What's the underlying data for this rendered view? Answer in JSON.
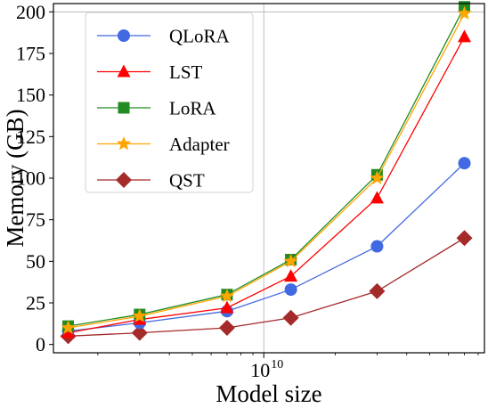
{
  "chart_data": {
    "type": "line",
    "xscale": "log",
    "x": [
      1500000000.0,
      3000000000.0,
      7000000000.0,
      13000000000.0,
      30000000000.0,
      70000000000.0
    ],
    "x_ticks": [
      {
        "value": 10000000000.0,
        "base": "10",
        "exp": "10"
      }
    ],
    "xlabel": "Model size",
    "ylabel": "Memory (GB)",
    "ylim": [
      -5,
      205
    ],
    "y_ticks": [
      0,
      25,
      50,
      75,
      100,
      125,
      150,
      175,
      200
    ],
    "grid": "major gridlines at x = 10^10 and y = 200",
    "legend_position": "top-left",
    "series": [
      {
        "name": "QLoRA",
        "color": "#4169e1",
        "marker": "circle",
        "values": [
          8,
          13,
          20,
          33,
          59,
          109
        ]
      },
      {
        "name": "LST",
        "color": "#ff0000",
        "marker": "triangle",
        "values": [
          7,
          15,
          22,
          41,
          88,
          185
        ]
      },
      {
        "name": "LoRA",
        "color": "#228b22",
        "marker": "square",
        "values": [
          11,
          18,
          30,
          51,
          102,
          203
        ]
      },
      {
        "name": "Adapter",
        "color": "#ffa500",
        "marker": "star",
        "values": [
          10,
          17,
          29,
          50,
          100,
          199
        ]
      },
      {
        "name": "QST",
        "color": "#a52a2a",
        "marker": "diamond",
        "values": [
          5,
          7,
          10,
          16,
          32,
          64
        ]
      }
    ]
  }
}
